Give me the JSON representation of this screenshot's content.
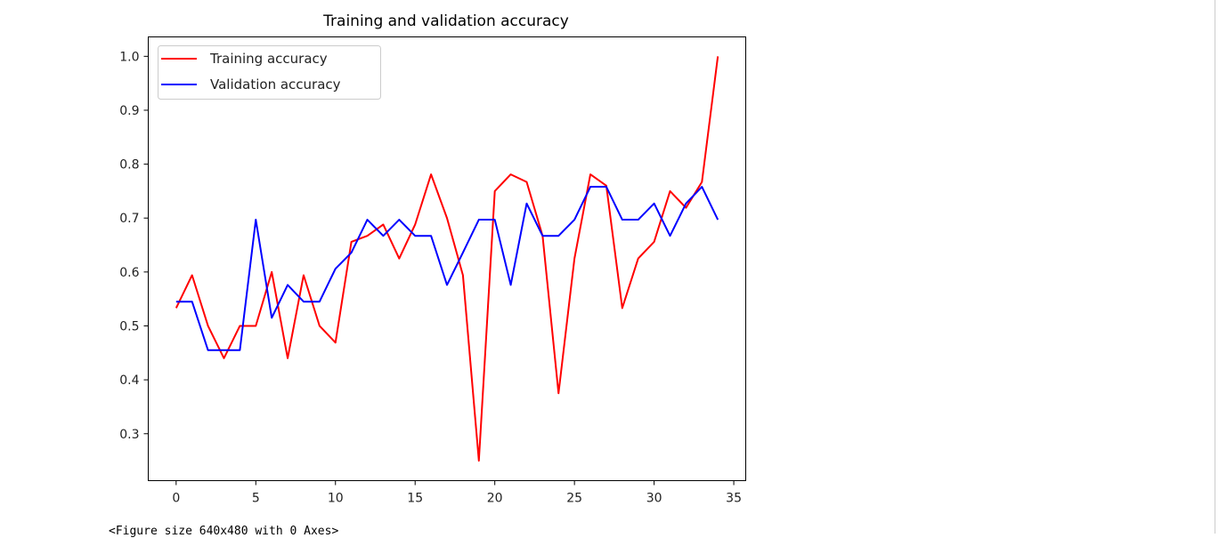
{
  "chart_data": {
    "type": "line",
    "title": "Training and validation accuracy",
    "xlabel": "",
    "ylabel": "",
    "xlim": [
      -1.75,
      35.75
    ],
    "ylim": [
      0.213,
      1.036
    ],
    "xticks": [
      0,
      5,
      10,
      15,
      20,
      25,
      30,
      35
    ],
    "yticks": [
      0.3,
      0.4,
      0.5,
      0.6,
      0.7,
      0.8,
      0.9,
      1.0
    ],
    "ytick_labels": [
      "0.3",
      "0.4",
      "0.5",
      "0.6",
      "0.7",
      "0.8",
      "0.9",
      "1.0"
    ],
    "grid": false,
    "legend_position": "upper-left",
    "x": [
      0,
      1,
      2,
      3,
      4,
      5,
      6,
      7,
      8,
      9,
      10,
      11,
      12,
      13,
      14,
      15,
      16,
      17,
      18,
      19,
      20,
      21,
      22,
      23,
      24,
      25,
      26,
      27,
      28,
      29,
      30,
      31,
      32,
      33,
      34
    ],
    "series": [
      {
        "name": "Training accuracy",
        "color": "#ff0000",
        "values": [
          0.533,
          0.594,
          0.5,
          0.44,
          0.5,
          0.5,
          0.6,
          0.44,
          0.594,
          0.5,
          0.469,
          0.656,
          0.667,
          0.688,
          0.625,
          0.688,
          0.781,
          0.7,
          0.594,
          0.25,
          0.75,
          0.781,
          0.767,
          0.667,
          0.375,
          0.625,
          0.781,
          0.76,
          0.533,
          0.625,
          0.656,
          0.75,
          0.719,
          0.767,
          1.0
        ]
      },
      {
        "name": "Validation accuracy",
        "color": "#0000ff",
        "values": [
          0.545,
          0.545,
          0.455,
          0.455,
          0.455,
          0.697,
          0.515,
          0.576,
          0.545,
          0.545,
          0.606,
          0.636,
          0.697,
          0.667,
          0.697,
          0.667,
          0.667,
          0.576,
          0.636,
          0.697,
          0.697,
          0.576,
          0.727,
          0.667,
          0.667,
          0.697,
          0.758,
          0.758,
          0.697,
          0.697,
          0.727,
          0.667,
          0.727,
          0.758,
          0.697
        ]
      }
    ]
  },
  "footer_text": "<Figure size 640x480 with 0 Axes>"
}
